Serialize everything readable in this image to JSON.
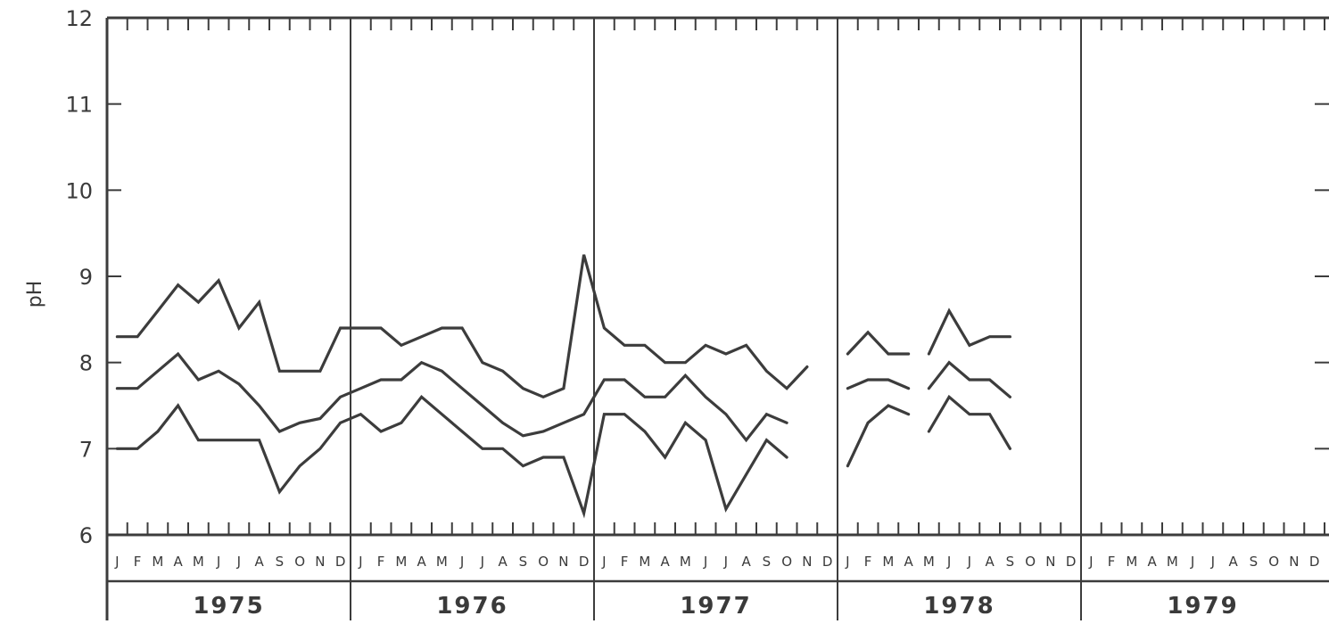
{
  "chart_data": {
    "type": "line",
    "title": "",
    "xlabel": "",
    "ylabel": "pH",
    "ylim": [
      6,
      12
    ],
    "yticks": [
      "6",
      "7",
      "8",
      "9",
      "10",
      "11",
      "12"
    ],
    "grid": false,
    "month_labels": [
      "J",
      "F",
      "M",
      "A",
      "M",
      "J",
      "J",
      "A",
      "S",
      "O",
      "N",
      "D"
    ],
    "years": [
      "1975",
      "1976",
      "1977",
      "1978",
      "1979"
    ],
    "x_unit": "months since January 1975",
    "series": [
      {
        "segments": [
          [
            [
              0,
              8.3
            ],
            [
              1,
              8.3
            ],
            [
              2,
              8.6
            ],
            [
              3,
              8.9
            ],
            [
              4,
              8.7
            ],
            [
              5,
              8.95
            ],
            [
              6,
              8.4
            ],
            [
              7,
              8.7
            ],
            [
              8,
              7.9
            ],
            [
              9,
              7.9
            ],
            [
              10,
              7.9
            ],
            [
              11,
              8.4
            ],
            [
              12,
              8.4
            ],
            [
              13,
              8.4
            ],
            [
              14,
              8.2
            ],
            [
              15,
              8.3
            ],
            [
              16,
              8.4
            ],
            [
              17,
              8.4
            ],
            [
              18,
              8.0
            ],
            [
              19,
              7.9
            ],
            [
              20,
              7.7
            ],
            [
              21,
              7.6
            ],
            [
              22,
              7.7
            ],
            [
              23,
              9.25
            ],
            [
              24,
              8.4
            ],
            [
              25,
              8.2
            ],
            [
              26,
              8.2
            ],
            [
              27,
              8.0
            ],
            [
              28,
              8.0
            ],
            [
              29,
              8.2
            ],
            [
              30,
              8.1
            ],
            [
              31,
              8.2
            ],
            [
              32,
              7.9
            ],
            [
              33,
              7.7
            ],
            [
              34,
              7.95
            ]
          ],
          [
            [
              36,
              8.1
            ],
            [
              37,
              8.35
            ],
            [
              38,
              8.1
            ],
            [
              39,
              8.1
            ]
          ],
          [
            [
              40,
              8.1
            ],
            [
              41,
              8.6
            ],
            [
              42,
              8.2
            ],
            [
              43,
              8.3
            ],
            [
              44,
              8.3
            ]
          ]
        ]
      },
      {
        "segments": [
          [
            [
              0,
              7.7
            ],
            [
              1,
              7.7
            ],
            [
              2,
              7.9
            ],
            [
              3,
              8.1
            ],
            [
              4,
              7.8
            ],
            [
              5,
              7.9
            ],
            [
              6,
              7.75
            ],
            [
              7,
              7.5
            ],
            [
              8,
              7.2
            ],
            [
              9,
              7.3
            ],
            [
              10,
              7.35
            ],
            [
              11,
              7.6
            ],
            [
              12,
              7.7
            ],
            [
              13,
              7.8
            ],
            [
              14,
              7.8
            ],
            [
              15,
              8.0
            ],
            [
              16,
              7.9
            ],
            [
              17,
              7.7
            ],
            [
              18,
              7.5
            ],
            [
              19,
              7.3
            ],
            [
              20,
              7.15
            ],
            [
              21,
              7.2
            ],
            [
              22,
              7.3
            ],
            [
              23,
              7.4
            ],
            [
              24,
              7.8
            ],
            [
              25,
              7.8
            ],
            [
              26,
              7.6
            ],
            [
              27,
              7.6
            ],
            [
              28,
              7.85
            ],
            [
              29,
              7.6
            ],
            [
              30,
              7.4
            ],
            [
              31,
              7.1
            ],
            [
              32,
              7.4
            ],
            [
              33,
              7.3
            ]
          ],
          [
            [
              36,
              7.7
            ],
            [
              37,
              7.8
            ],
            [
              38,
              7.8
            ],
            [
              39,
              7.7
            ]
          ],
          [
            [
              40,
              7.7
            ],
            [
              41,
              8.0
            ],
            [
              42,
              7.8
            ],
            [
              43,
              7.8
            ],
            [
              44,
              7.6
            ]
          ]
        ]
      },
      {
        "segments": [
          [
            [
              0,
              7.0
            ],
            [
              1,
              7.0
            ],
            [
              2,
              7.2
            ],
            [
              3,
              7.5
            ],
            [
              4,
              7.1
            ],
            [
              5,
              7.1
            ],
            [
              6,
              7.1
            ],
            [
              7,
              7.1
            ],
            [
              8,
              6.5
            ],
            [
              9,
              6.8
            ],
            [
              10,
              7.0
            ],
            [
              11,
              7.3
            ],
            [
              12,
              7.4
            ],
            [
              13,
              7.2
            ],
            [
              14,
              7.3
            ],
            [
              15,
              7.6
            ],
            [
              16,
              7.4
            ],
            [
              17,
              7.2
            ],
            [
              18,
              7.0
            ],
            [
              19,
              7.0
            ],
            [
              20,
              6.8
            ],
            [
              21,
              6.9
            ],
            [
              22,
              6.9
            ],
            [
              23,
              6.25
            ],
            [
              24,
              7.4
            ],
            [
              25,
              7.4
            ],
            [
              26,
              7.2
            ],
            [
              27,
              6.9
            ],
            [
              28,
              7.3
            ],
            [
              29,
              7.1
            ],
            [
              30,
              6.3
            ],
            [
              31,
              6.7
            ],
            [
              32,
              7.1
            ],
            [
              33,
              6.9
            ]
          ],
          [
            [
              36,
              6.8
            ],
            [
              37,
              7.3
            ],
            [
              38,
              7.5
            ],
            [
              39,
              7.4
            ]
          ],
          [
            [
              40,
              7.2
            ],
            [
              41,
              7.6
            ],
            [
              42,
              7.4
            ],
            [
              43,
              7.4
            ],
            [
              44,
              7.0
            ]
          ]
        ]
      }
    ]
  }
}
